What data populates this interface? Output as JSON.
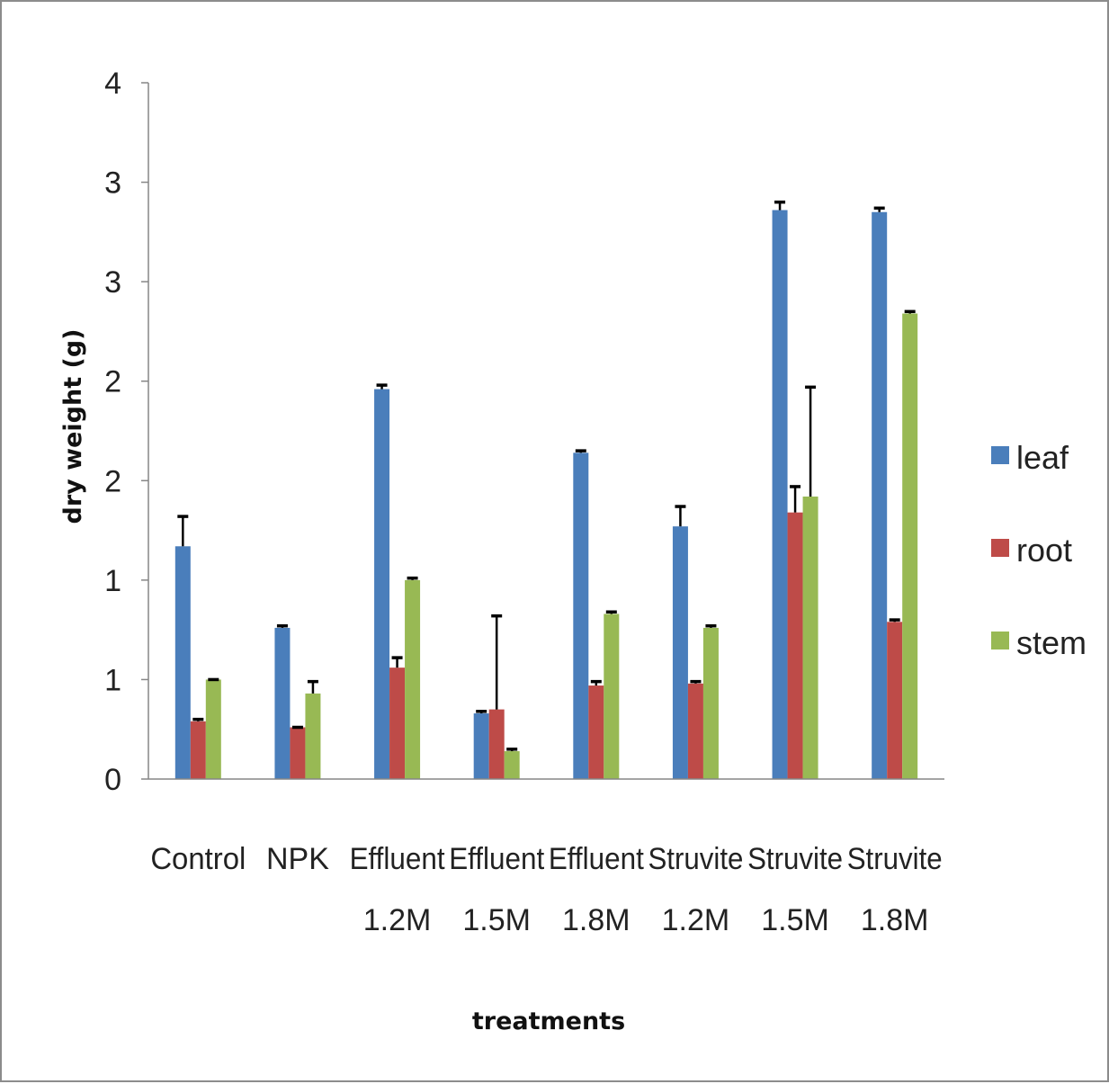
{
  "chart_data": {
    "type": "bar",
    "title": "",
    "xlabel": "treatments",
    "ylabel": "dry weight (g)",
    "ylim": [
      0,
      3.5
    ],
    "y_tick_values": [
      0,
      0.5,
      1,
      1.5,
      2,
      2.5,
      3,
      3.5
    ],
    "y_tick_labels": [
      "0",
      "1",
      "1",
      "2",
      "2",
      "3",
      "3",
      "4"
    ],
    "categories": [
      [
        "Control",
        ""
      ],
      [
        "NPK",
        ""
      ],
      [
        "Effluent",
        "1.2M"
      ],
      [
        "Effluent",
        "1.5M"
      ],
      [
        "Effluent",
        "1.8M"
      ],
      [
        "Struvite",
        "1.2M"
      ],
      [
        "Struvite",
        "1.5M"
      ],
      [
        "Struvite",
        "1.8M"
      ]
    ],
    "series": [
      {
        "name": "leaf",
        "color": "#4a7ebb",
        "values": [
          1.17,
          0.76,
          1.96,
          0.33,
          1.64,
          1.27,
          2.86,
          2.85
        ],
        "errors": [
          0.15,
          0.01,
          0.02,
          0.01,
          0.01,
          0.1,
          0.04,
          0.02
        ]
      },
      {
        "name": "root",
        "color": "#be4b48",
        "values": [
          0.29,
          0.26,
          0.56,
          0.35,
          0.47,
          0.48,
          1.34,
          0.79
        ],
        "errors": [
          0.01,
          0.0,
          0.05,
          0.47,
          0.02,
          0.01,
          0.13,
          0.01
        ]
      },
      {
        "name": "stem",
        "color": "#98b954",
        "values": [
          0.5,
          0.43,
          1.0,
          0.14,
          0.83,
          0.76,
          1.42,
          2.34
        ],
        "errors": [
          0.0,
          0.06,
          0.01,
          0.01,
          0.01,
          0.01,
          0.55,
          0.01
        ]
      }
    ],
    "legend_position": "right",
    "grid": false
  }
}
